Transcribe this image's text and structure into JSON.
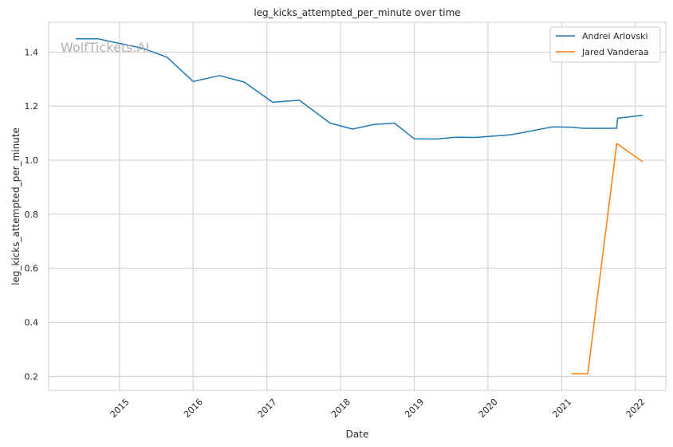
{
  "watermark": "WolfTickets.AI",
  "chart_data": {
    "type": "line",
    "title": "leg_kicks_attempted_per_minute over time",
    "xlabel": "Date",
    "ylabel": "leg_kicks_attempted_per_minute",
    "x_type": "date",
    "xlim": [
      "2014-01-15",
      "2022-06-01"
    ],
    "ylim": [
      0.148,
      1.51
    ],
    "x_ticks": [
      "2015-01-01",
      "2016-01-01",
      "2017-01-01",
      "2018-01-01",
      "2019-01-01",
      "2020-01-01",
      "2021-01-01",
      "2022-01-01"
    ],
    "x_tick_labels": [
      "2015",
      "2016",
      "2017",
      "2018",
      "2019",
      "2020",
      "2021",
      "2022"
    ],
    "y_ticks": [
      0.2,
      0.4,
      0.6,
      0.8,
      1.0,
      1.2,
      1.4
    ],
    "y_tick_labels": [
      "0.2",
      "0.4",
      "0.6",
      "0.8",
      "1.0",
      "1.2",
      "1.4"
    ],
    "grid": true,
    "legend_position": "top-right",
    "series": [
      {
        "name": "Andrei Arlovski",
        "color": "#1f77b4",
        "points": [
          [
            "2014-06-01",
            1.449
          ],
          [
            "2014-09-15",
            1.449
          ],
          [
            "2015-05-01",
            1.413
          ],
          [
            "2015-08-25",
            1.381
          ],
          [
            "2016-01-01",
            1.291
          ],
          [
            "2016-05-10",
            1.313
          ],
          [
            "2016-09-10",
            1.289
          ],
          [
            "2017-01-30",
            1.214
          ],
          [
            "2017-06-10",
            1.222
          ],
          [
            "2017-11-10",
            1.137
          ],
          [
            "2018-03-01",
            1.115
          ],
          [
            "2018-06-15",
            1.132
          ],
          [
            "2018-09-25",
            1.137
          ],
          [
            "2019-01-01",
            1.079
          ],
          [
            "2019-04-20",
            1.078
          ],
          [
            "2019-07-25",
            1.085
          ],
          [
            "2019-10-30",
            1.084
          ],
          [
            "2020-04-25",
            1.094
          ],
          [
            "2020-11-15",
            1.123
          ],
          [
            "2021-02-20",
            1.122
          ],
          [
            "2021-04-15",
            1.118
          ],
          [
            "2021-09-30",
            1.118
          ],
          [
            "2021-10-05",
            1.155
          ],
          [
            "2022-02-05",
            1.166
          ]
        ]
      },
      {
        "name": "Jared Vanderaa",
        "color": "#ff7f0e",
        "points": [
          [
            "2021-02-20",
            0.21
          ],
          [
            "2021-05-10",
            0.21
          ],
          [
            "2021-10-01",
            1.062
          ],
          [
            "2022-02-05",
            0.995
          ]
        ]
      }
    ]
  }
}
